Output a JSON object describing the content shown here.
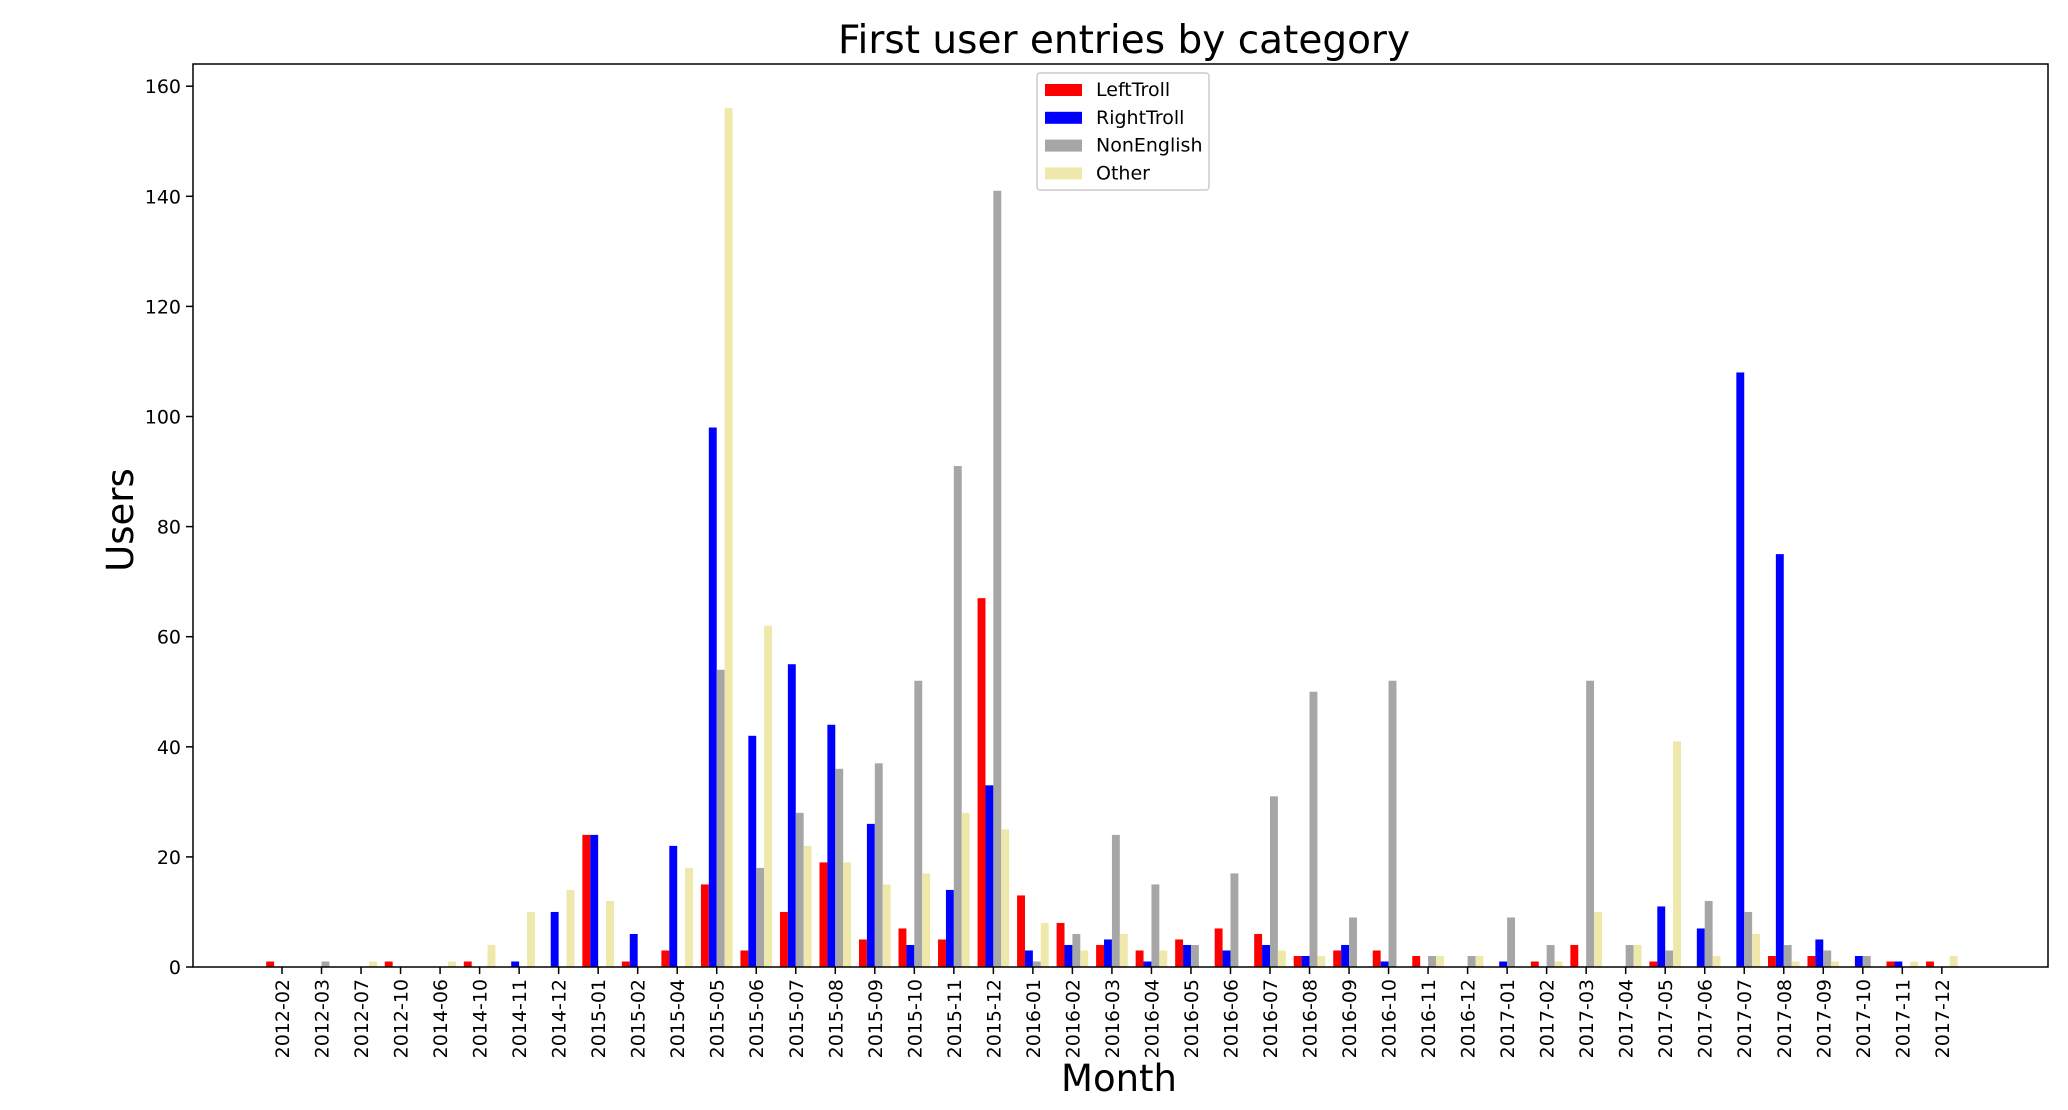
{
  "chart_data": {
    "type": "bar",
    "title": "First user entries by category",
    "xlabel": "Month",
    "ylabel": "Users",
    "ylim": [
      0,
      165
    ],
    "yticks": [
      0,
      20,
      40,
      60,
      80,
      100,
      120,
      140,
      160
    ],
    "grid": false,
    "legend_position": "top-center",
    "categories": [
      "2012-02",
      "2012-03",
      "2012-07",
      "2012-10",
      "2014-06",
      "2014-10",
      "2014-11",
      "2014-12",
      "2015-01",
      "2015-02",
      "2015-04",
      "2015-05",
      "2015-06",
      "2015-07",
      "2015-08",
      "2015-09",
      "2015-10",
      "2015-11",
      "2015-12",
      "2016-01",
      "2016-02",
      "2016-03",
      "2016-04",
      "2016-05",
      "2016-06",
      "2016-07",
      "2016-08",
      "2016-09",
      "2016-10",
      "2016-11",
      "2016-12",
      "2017-01",
      "2017-02",
      "2017-03",
      "2017-04",
      "2017-05",
      "2017-06",
      "2017-07",
      "2017-08",
      "2017-09",
      "2017-10",
      "2017-11",
      "2017-12"
    ],
    "series": [
      {
        "name": "LeftTroll",
        "color": "#ff0000",
        "values": [
          1,
          0,
          0,
          1,
          0,
          1,
          0,
          0,
          24,
          1,
          3,
          15,
          3,
          10,
          19,
          5,
          7,
          5,
          67,
          13,
          8,
          4,
          3,
          5,
          7,
          6,
          2,
          3,
          3,
          2,
          0,
          0,
          1,
          4,
          0,
          1,
          0,
          0,
          2,
          2,
          0,
          1,
          1
        ]
      },
      {
        "name": "RightTroll",
        "color": "#0000ff",
        "values": [
          0,
          0,
          0,
          0,
          0,
          0,
          1,
          10,
          24,
          6,
          22,
          98,
          42,
          55,
          44,
          26,
          4,
          14,
          33,
          3,
          4,
          5,
          1,
          4,
          3,
          4,
          2,
          4,
          1,
          0,
          0,
          1,
          0,
          0,
          0,
          11,
          7,
          108,
          75,
          5,
          2,
          1,
          0
        ]
      },
      {
        "name": "NonEnglish",
        "color": "#a6a6a6",
        "values": [
          0,
          1,
          0,
          0,
          0,
          0,
          0,
          0,
          0,
          0,
          0,
          54,
          18,
          28,
          36,
          37,
          52,
          91,
          141,
          1,
          6,
          24,
          15,
          4,
          17,
          31,
          50,
          9,
          52,
          2,
          2,
          9,
          4,
          52,
          4,
          3,
          12,
          10,
          4,
          3,
          2,
          0,
          0
        ]
      },
      {
        "name": "Other",
        "color": "#eee8aa",
        "values": [
          0,
          0,
          1,
          0,
          1,
          4,
          10,
          14,
          12,
          0,
          18,
          156,
          62,
          22,
          19,
          15,
          17,
          28,
          25,
          8,
          3,
          6,
          3,
          0,
          0,
          3,
          2,
          0,
          0,
          2,
          2,
          0,
          1,
          10,
          4,
          41,
          2,
          6,
          1,
          1,
          0,
          1,
          2
        ]
      }
    ]
  }
}
